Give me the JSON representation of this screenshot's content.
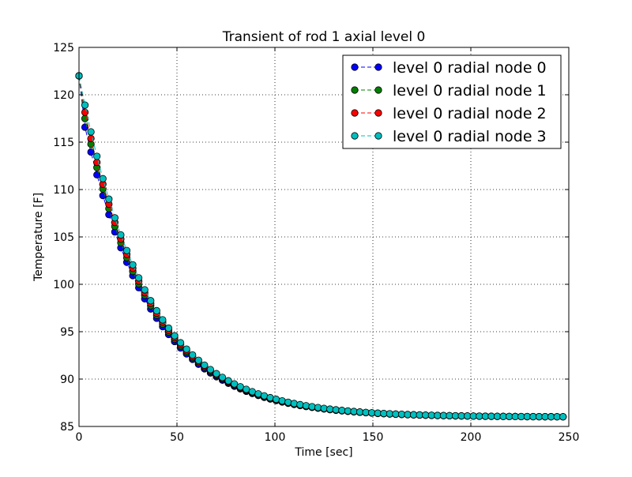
{
  "chart_data": {
    "type": "line",
    "title": "Transient of rod 1 axial level 0",
    "xlabel": "Time [sec]",
    "ylabel": "Temperature [F]",
    "xlim": [
      0,
      250
    ],
    "ylim": [
      85,
      125
    ],
    "xticks": [
      "0",
      "50",
      "100",
      "150",
      "200",
      "250"
    ],
    "yticks": [
      "85",
      "90",
      "95",
      "100",
      "105",
      "110",
      "115",
      "120",
      "125"
    ],
    "grid": true,
    "legend_position": "top-right",
    "series": [
      {
        "name": "level 0 radial node 0",
        "color": "#0000ff",
        "x0": 0,
        "dx": 3.05,
        "count": 82,
        "y_start": 122.0,
        "y_end": 86.0,
        "tau": 34.0,
        "offset": 2.5
      },
      {
        "name": "level 0 radial node 1",
        "color": "#008000",
        "x0": 0,
        "dx": 3.05,
        "count": 82,
        "y_start": 122.0,
        "y_end": 86.0,
        "tau": 34.0,
        "offset": 1.5
      },
      {
        "name": "level 0 radial node 2",
        "color": "#ff0000",
        "x0": 0,
        "dx": 3.05,
        "count": 82,
        "y_start": 122.0,
        "y_end": 86.0,
        "tau": 34.0,
        "offset": 0.8
      },
      {
        "name": "level 0 radial node 3",
        "color": "#00bfbf",
        "x0": 0,
        "dx": 3.05,
        "count": 82,
        "y_start": 122.0,
        "y_end": 86.0,
        "tau": 34.0,
        "offset": 0.0
      }
    ]
  }
}
